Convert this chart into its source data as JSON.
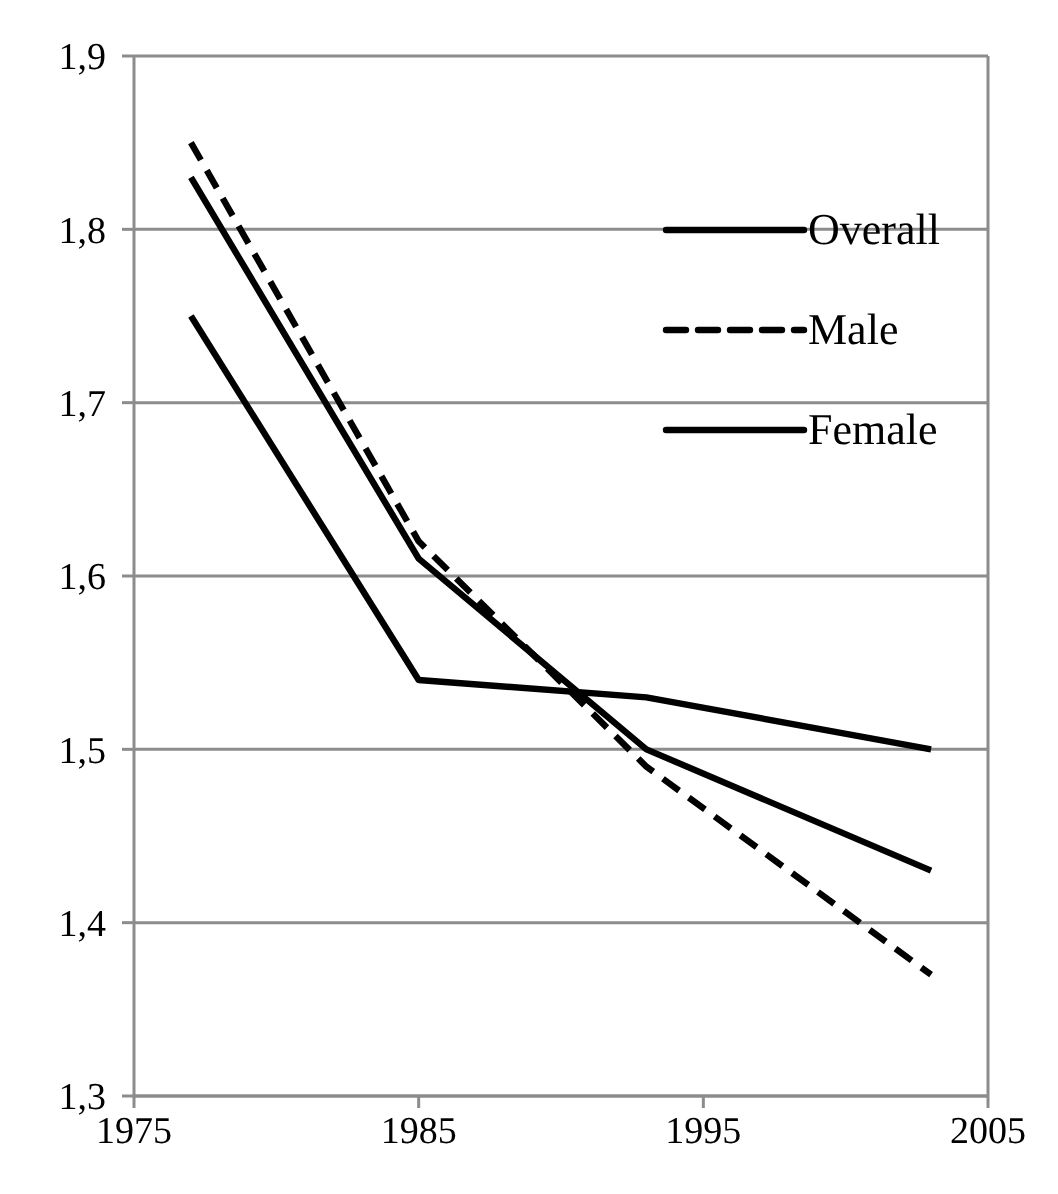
{
  "chart_data": {
    "type": "line",
    "x": [
      1977,
      1985,
      1993,
      2003
    ],
    "series": [
      {
        "name": "Overall",
        "color": "#000000",
        "values": [
          1.83,
          1.61,
          1.5,
          1.43
        ],
        "line_style": "solid"
      },
      {
        "name": "Male",
        "color": "#000000",
        "values": [
          1.85,
          1.62,
          1.49,
          1.37
        ],
        "line_style": "dashed"
      },
      {
        "name": "Female",
        "color": "#000000",
        "values": [
          1.75,
          1.54,
          1.53,
          1.5
        ],
        "line_style": "solid"
      }
    ],
    "xlim": [
      1975,
      2005
    ],
    "xticks": [
      1975,
      1985,
      1995,
      2005
    ],
    "ylim": [
      1.3,
      1.9
    ],
    "yticks": [
      {
        "value": 1.3,
        "label": "1,3"
      },
      {
        "value": 1.4,
        "label": "1,4"
      },
      {
        "value": 1.5,
        "label": "1,5"
      },
      {
        "value": 1.6,
        "label": "1,6"
      },
      {
        "value": 1.7,
        "label": "1,7"
      },
      {
        "value": 1.8,
        "label": "1,8"
      },
      {
        "value": 1.9,
        "label": "1,9"
      }
    ],
    "grid": "y",
    "legend": "top right",
    "marker": "none"
  }
}
